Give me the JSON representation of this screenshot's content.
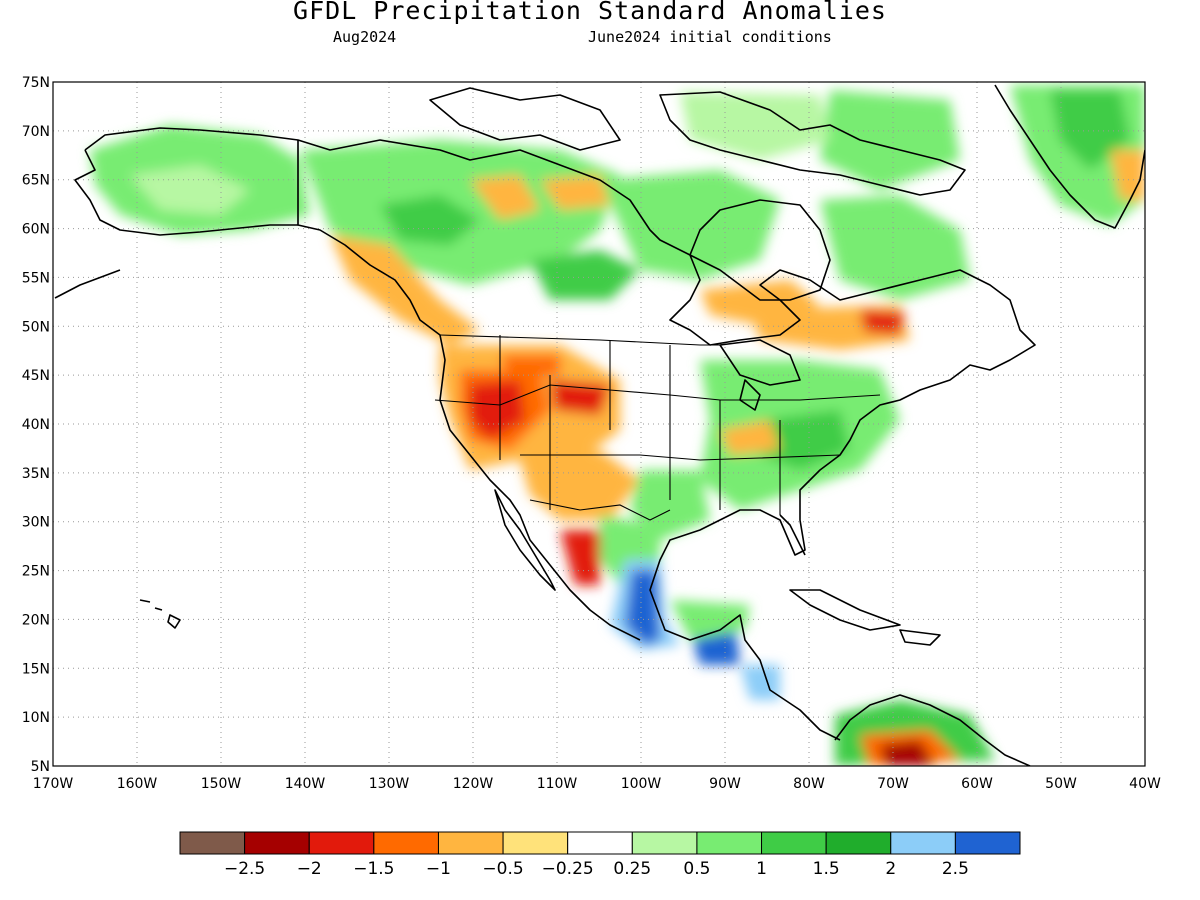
{
  "title": "GFDL Precipitation Standard Anomalies",
  "valid_month": "Aug2024",
  "init_conditions": "June2024 initial conditions",
  "lat_labels": [
    "75N",
    "70N",
    "65N",
    "60N",
    "55N",
    "50N",
    "45N",
    "40N",
    "35N",
    "30N",
    "25N",
    "20N",
    "15N",
    "10N",
    "5N"
  ],
  "lon_labels": [
    "170W",
    "160W",
    "150W",
    "140W",
    "130W",
    "120W",
    "110W",
    "100W",
    "90W",
    "80W",
    "70W",
    "60W",
    "50W",
    "40W"
  ],
  "colorbar": {
    "colors": [
      "#7f5a4a",
      "#a50000",
      "#e21a0c",
      "#ff6a00",
      "#ffb540",
      "#ffe27a",
      "#ffffff",
      "#b7f7a3",
      "#78ec72",
      "#3fcc46",
      "#20ad2c",
      "#8ccdf8",
      "#1f63d2"
    ],
    "labels": [
      "−2.5",
      "−2",
      "−1.5",
      "−1",
      "−0.5",
      "−0.25",
      "0.25",
      "0.5",
      "1",
      "1.5",
      "2",
      "2.5"
    ]
  }
}
